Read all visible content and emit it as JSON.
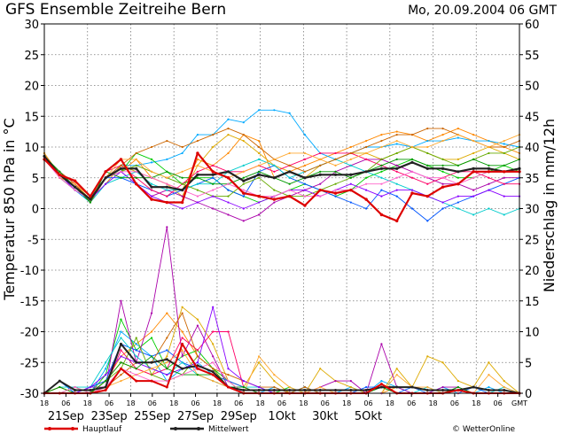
{
  "header": {
    "title": "GFS Ensemble Zeitreihe Bern",
    "date": "Mo, 20.09.2004 06 GMT"
  },
  "axes": {
    "ylabel_left": "Temperatur 850 hPa in °C",
    "ylabel_right": "Niederschlag in mm/12h"
  },
  "legend": {
    "hauptlauf": "Hauptlauf",
    "mittelwert": "Mittelwert",
    "credit": "© WetterOnline"
  },
  "chart_data": {
    "type": "line",
    "x_hour_labels": [
      "18",
      "06",
      "18",
      "06",
      "18",
      "06",
      "18",
      "06",
      "18",
      "06",
      "18",
      "06",
      "18",
      "06",
      "18",
      "06",
      "18",
      "06",
      "18",
      "06",
      "18",
      "06",
      "GMT"
    ],
    "day_labels": [
      "21Sep",
      "23Sep",
      "25Sep",
      "27Sep",
      "29Sep",
      "1Okt",
      "30kt",
      "5Okt"
    ],
    "left_axis": {
      "ylim": [
        -30,
        30
      ],
      "ticks": [
        -30,
        -25,
        -20,
        -15,
        -10,
        -5,
        0,
        5,
        10,
        15,
        20,
        25,
        30
      ]
    },
    "right_axis": {
      "ylim": [
        0,
        60
      ],
      "ticks": [
        0,
        5,
        10,
        15,
        20,
        25,
        30,
        35,
        40,
        45,
        50,
        55,
        60
      ]
    },
    "grid": true,
    "colors": {
      "hauptlauf": "#dd0000",
      "mittelwert": "#222222",
      "members": [
        "#ff8800",
        "#00aaff",
        "#00cc00",
        "#ddaa00",
        "#aa00aa",
        "#0055ff",
        "#ff0066",
        "#00cccc",
        "#66aa00",
        "#cc6600",
        "#8800ff",
        "#ffaa33",
        "#009900",
        "#ff66cc"
      ]
    },
    "temp_series": {
      "hauptlauf": [
        8,
        5.5,
        4.5,
        2,
        6,
        8,
        4,
        1.5,
        1,
        1,
        9,
        6,
        5,
        2.5,
        2,
        1.5,
        2,
        0.5,
        3,
        2.5,
        3,
        1.5,
        -1,
        -2,
        2.5,
        2,
        3.5,
        4,
        6,
        6,
        6,
        6
      ],
      "mittelwert": [
        8.5,
        5.5,
        3.5,
        1.5,
        5,
        6.5,
        6.5,
        3.5,
        3.5,
        3,
        5.5,
        5.5,
        6,
        4.5,
        5.5,
        5,
        6,
        5,
        5.5,
        5.5,
        5.5,
        6,
        6.5,
        6.5,
        7.5,
        6.5,
        6.5,
        6,
        6.5,
        6.5,
        6,
        6.5
      ],
      "members": [
        [
          9,
          5.5,
          3.5,
          1.5,
          5,
          6,
          8,
          5,
          4,
          3,
          8,
          7,
          9,
          12,
          11,
          5,
          6,
          7,
          8,
          9,
          10,
          11,
          12,
          12.5,
          12,
          11,
          12,
          13,
          12,
          11,
          10,
          9
        ],
        [
          8.5,
          5,
          3,
          1,
          5,
          7,
          7,
          7.5,
          8,
          9,
          12,
          12,
          14.5,
          14,
          16,
          16,
          15.5,
          12,
          9,
          8,
          9,
          10,
          10,
          10.5,
          10,
          11,
          11,
          11.5,
          11,
          11,
          10.5,
          10
        ],
        [
          8,
          6,
          3.5,
          1,
          5,
          6,
          9,
          8,
          6,
          4,
          5,
          5,
          3,
          2,
          1,
          2,
          3,
          4,
          3,
          2,
          3,
          5,
          6,
          7,
          8,
          7,
          6,
          5,
          5,
          6,
          7,
          6
        ],
        [
          9,
          5,
          4,
          1.5,
          4,
          7,
          6,
          5,
          4,
          2,
          7,
          10,
          12,
          11,
          9,
          7,
          6,
          5,
          7,
          8,
          9,
          9,
          8,
          9,
          10,
          9,
          8,
          8,
          9,
          10,
          9,
          8
        ],
        [
          8,
          6,
          4,
          1,
          5,
          6,
          4,
          2,
          3,
          2,
          1,
          0,
          -1,
          -2,
          -1,
          1,
          2,
          3,
          4,
          6,
          7,
          8,
          8,
          7,
          6,
          5,
          4,
          4,
          3,
          4,
          5,
          5
        ],
        [
          8.5,
          5.5,
          3,
          1.5,
          5,
          5,
          4,
          3,
          2,
          3,
          4,
          5,
          3,
          2,
          6,
          7,
          5,
          4,
          3,
          2,
          1,
          0,
          3,
          2,
          0,
          -2,
          0,
          1,
          2,
          3,
          4,
          5
        ],
        [
          9,
          5,
          4,
          2,
          6,
          7,
          5,
          3,
          2,
          4,
          6,
          7,
          6,
          6,
          7,
          6,
          7,
          8,
          9,
          9,
          9,
          8,
          7,
          6,
          5,
          4,
          5,
          6,
          6,
          5,
          4,
          4
        ],
        [
          8,
          6,
          3.5,
          1,
          4,
          5,
          6,
          4,
          3,
          3,
          4,
          4,
          6,
          7,
          8,
          7,
          5,
          6,
          7,
          8,
          7,
          6,
          5,
          4,
          3,
          2,
          1,
          0,
          -1,
          0,
          -1,
          0
        ],
        [
          9,
          5,
          3,
          1.5,
          5,
          6,
          7,
          6,
          5,
          4,
          3,
          2,
          2,
          4,
          5,
          3,
          2,
          2,
          3,
          4,
          5,
          6,
          8,
          9,
          10,
          9,
          8,
          7,
          8,
          9,
          9,
          10
        ],
        [
          8.5,
          6,
          4,
          1,
          5,
          7,
          9,
          10,
          11,
          10,
          11,
          12,
          13,
          12,
          10,
          8,
          7,
          6,
          7,
          8,
          9,
          10,
          11,
          12,
          12,
          13,
          13,
          12,
          11,
          10,
          10,
          11
        ],
        [
          8,
          5.5,
          3,
          1.5,
          4,
          6,
          4,
          2,
          1,
          0,
          1,
          2,
          1,
          0,
          1,
          2,
          3,
          3,
          2,
          3,
          4,
          3,
          2,
          3,
          3,
          2,
          1,
          2,
          2,
          3,
          2,
          2
        ],
        [
          9,
          5,
          4,
          2,
          5,
          8,
          8,
          6,
          5,
          6,
          7,
          6,
          5,
          6,
          7,
          8,
          9,
          9,
          8,
          7,
          8,
          9,
          10,
          11,
          10,
          10,
          11,
          12,
          11,
          10,
          11,
          12
        ],
        [
          8.5,
          6,
          3.5,
          1,
          6,
          5,
          5,
          5,
          6,
          5,
          5,
          4,
          4,
          5,
          6,
          5,
          4,
          5,
          6,
          6,
          5,
          6,
          7,
          8,
          8,
          7,
          7,
          7,
          8,
          7,
          7,
          8
        ],
        [
          8,
          5,
          3,
          1.5,
          5,
          6,
          6,
          5,
          4,
          3,
          2,
          3,
          4,
          3,
          2,
          2,
          3,
          2,
          2,
          3,
          3,
          4,
          4,
          5,
          6,
          5,
          5,
          4,
          5,
          6,
          6,
          6
        ]
      ]
    },
    "precip_series": {
      "hauptlauf": [
        0,
        0,
        0,
        0,
        0.5,
        4,
        2,
        2,
        1,
        8,
        4,
        3,
        1,
        0,
        0,
        0,
        0,
        0,
        0,
        0,
        0,
        0,
        1.5,
        0,
        0,
        0,
        0,
        0.5,
        0,
        0,
        0,
        0
      ],
      "mittelwert": [
        0,
        2,
        0.5,
        0.5,
        1,
        8,
        5,
        5,
        5.5,
        4,
        4.5,
        3.5,
        1,
        0.5,
        0.5,
        0.5,
        0.5,
        0.5,
        0.5,
        0.5,
        0.5,
        0.5,
        1,
        1,
        1,
        0.5,
        0.5,
        0.5,
        1,
        0.5,
        0.5,
        0
      ],
      "members": [
        [
          0,
          0,
          0,
          1,
          2,
          6,
          8,
          10,
          13,
          10,
          6,
          4,
          1,
          0,
          0,
          0,
          0,
          0,
          0,
          0,
          0,
          0,
          0,
          1,
          0,
          0,
          0,
          0,
          0,
          0,
          0,
          0
        ],
        [
          0,
          2,
          0,
          0,
          4,
          10,
          8,
          6,
          2,
          4,
          5,
          3,
          1,
          0,
          0,
          1,
          0,
          0,
          0,
          0,
          1,
          0,
          2,
          1,
          0,
          0,
          1,
          0,
          0,
          1,
          0,
          0
        ],
        [
          0,
          0,
          1,
          0,
          3,
          12,
          7,
          9,
          4,
          6,
          7,
          4,
          2,
          0,
          0,
          0,
          1,
          0,
          0,
          0,
          0,
          0,
          0,
          0,
          0,
          0,
          0,
          0,
          0,
          0,
          0,
          0
        ],
        [
          0,
          1,
          0,
          0,
          2,
          5,
          4,
          3,
          6,
          14,
          12,
          8,
          2,
          1,
          5,
          2,
          0,
          0,
          4,
          2,
          1,
          0,
          0,
          4,
          1,
          6,
          5,
          2,
          1,
          5,
          2,
          0
        ],
        [
          0,
          0,
          0,
          1,
          1,
          15,
          5,
          13,
          27,
          6,
          11,
          6,
          1,
          0,
          0,
          0,
          0,
          0,
          1,
          2,
          2,
          0,
          8,
          1,
          0,
          0,
          1,
          1,
          0,
          0,
          0,
          0
        ],
        [
          0,
          2,
          0,
          1,
          2,
          8,
          7,
          6,
          7,
          5,
          4,
          3,
          2,
          1,
          0,
          0,
          0,
          1,
          0,
          0,
          0,
          1,
          1,
          0,
          1,
          0,
          0,
          0,
          1,
          0,
          0,
          0
        ],
        [
          0,
          0,
          0,
          0,
          1,
          7,
          4,
          3,
          4,
          9,
          7,
          10,
          10,
          1,
          0,
          0,
          0,
          0,
          0,
          0,
          0,
          0,
          0,
          0,
          0,
          0,
          0,
          0,
          0,
          0,
          0,
          0
        ],
        [
          0,
          1,
          1,
          1,
          5,
          9,
          6,
          4,
          3,
          5,
          3,
          2,
          1,
          1,
          1,
          0,
          0,
          1,
          0,
          0,
          0,
          0,
          0,
          0,
          0,
          1,
          0,
          0,
          0,
          0,
          1,
          0
        ],
        [
          0,
          0,
          1,
          0,
          2,
          4,
          9,
          3,
          2,
          3,
          6,
          4,
          1,
          0,
          0,
          0,
          0,
          0,
          0,
          0,
          0,
          0,
          0,
          0,
          0,
          0,
          0,
          0,
          0,
          0,
          0,
          0
        ],
        [
          0,
          1,
          0,
          0,
          1,
          3,
          5,
          5,
          9,
          13,
          6,
          4,
          3,
          2,
          1,
          1,
          0,
          1,
          0,
          0,
          0,
          0,
          0,
          0,
          0,
          0,
          0,
          0,
          0,
          0,
          0,
          0
        ],
        [
          0,
          0,
          0,
          1,
          3,
          6,
          5,
          4,
          3,
          4,
          5,
          14,
          4,
          2,
          1,
          0,
          0,
          0,
          0,
          0,
          0,
          0,
          0,
          0,
          0,
          0,
          0,
          0,
          0,
          0,
          0,
          0
        ],
        [
          0,
          0,
          0,
          0,
          1,
          2,
          3,
          4,
          5,
          7,
          3,
          2,
          1,
          0,
          6,
          3,
          1,
          0,
          1,
          0,
          0,
          0,
          0,
          3,
          1,
          1,
          0,
          0,
          0,
          3,
          1,
          0
        ],
        [
          0,
          1,
          0,
          0,
          2,
          5,
          4,
          6,
          4,
          3,
          3,
          3,
          1,
          1,
          0,
          0,
          0,
          0,
          0,
          0,
          0,
          0,
          1,
          0,
          0,
          0,
          0,
          1,
          0,
          0,
          0,
          0
        ],
        [
          0,
          0,
          1,
          0,
          1,
          4,
          3,
          2,
          2,
          3,
          4,
          5,
          2,
          0,
          0,
          0,
          0,
          0,
          0,
          0,
          0,
          0,
          0,
          0,
          0,
          0,
          0,
          0,
          0,
          0,
          0,
          0
        ]
      ]
    }
  }
}
